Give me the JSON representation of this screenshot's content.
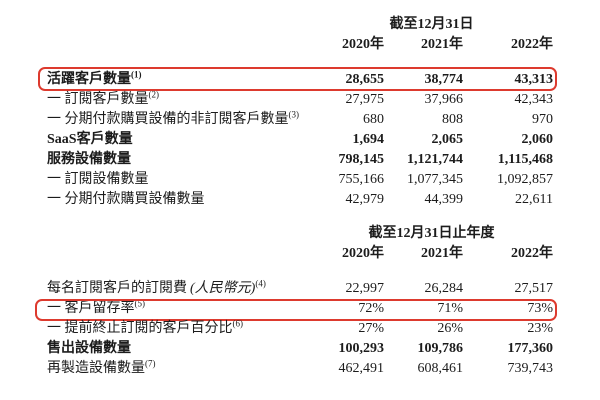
{
  "highlight_color": "#dd3a2e",
  "table1": {
    "period_header": "截至12月31日",
    "years": [
      "2020年",
      "2021年",
      "2022年"
    ],
    "rows": [
      {
        "label": "活躍客戶數量",
        "sup": "(1)",
        "values": [
          "28,655",
          "38,774",
          "43,313"
        ],
        "bold": true,
        "highlight": true
      },
      {
        "label": "一 訂閱客戶數量",
        "sup": "(2)",
        "values": [
          "27,975",
          "37,966",
          "42,343"
        ]
      },
      {
        "label": "一 分期付款購買設備的非訂閱客戶數量",
        "sup": "(3)",
        "values": [
          "680",
          "808",
          "970"
        ]
      },
      {
        "label": "SaaS客戶數量",
        "values": [
          "1,694",
          "2,065",
          "2,060"
        ],
        "bold": true
      },
      {
        "label": "服務設備數量",
        "values": [
          "798,145",
          "1,121,744",
          "1,115,468"
        ],
        "bold": true
      },
      {
        "label": "一 訂閱設備數量",
        "values": [
          "755,166",
          "1,077,345",
          "1,092,857"
        ]
      },
      {
        "label": "一 分期付款購買設備數量",
        "values": [
          "42,979",
          "44,399",
          "22,611"
        ]
      }
    ]
  },
  "table2": {
    "period_header": "截至12月31日止年度",
    "years": [
      "2020年",
      "2021年",
      "2022年"
    ],
    "rows": [
      {
        "label": "每名訂閱客戶的訂閱費",
        "label_italic": "(人民幣元)",
        "sup": "(4)",
        "values": [
          "22,997",
          "26,284",
          "27,517"
        ]
      },
      {
        "label": "一 客戶留存率",
        "sup": "(5)",
        "values": [
          "72%",
          "71%",
          "73%"
        ],
        "highlight": true
      },
      {
        "label": "一 提前終止訂閱的客戶百分比",
        "sup": "(6)",
        "values": [
          "27%",
          "26%",
          "23%"
        ]
      },
      {
        "label": "售出設備數量",
        "values": [
          "100,293",
          "109,786",
          "177,360"
        ],
        "bold": true
      },
      {
        "label": "再製造設備數量",
        "sup": "(7)",
        "values": [
          "462,491",
          "608,461",
          "739,743"
        ]
      }
    ]
  }
}
